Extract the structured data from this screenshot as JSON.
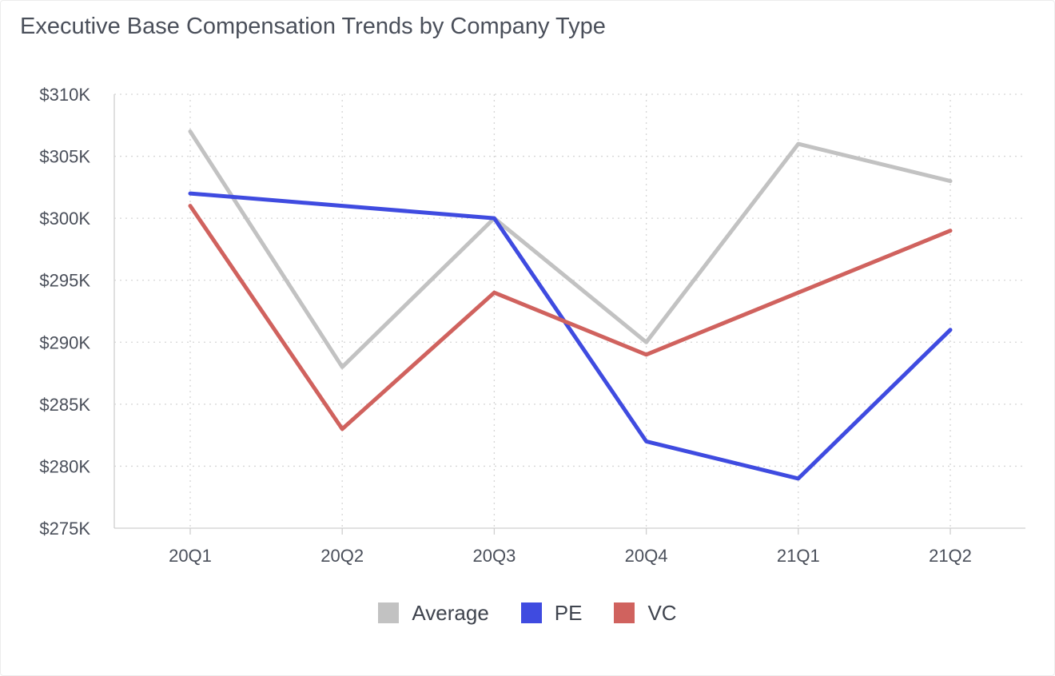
{
  "chart_data": {
    "type": "line",
    "title": "Executive Base Compensation Trends by Company Type",
    "xlabel": "",
    "ylabel": "",
    "categories": [
      "20Q1",
      "20Q2",
      "20Q3",
      "20Q4",
      "21Q1",
      "21Q2"
    ],
    "series": [
      {
        "name": "Average",
        "color": "#c2c2c2",
        "values": [
          307,
          288,
          300,
          290,
          306,
          303
        ]
      },
      {
        "name": "PE",
        "color": "#3f4be0",
        "values": [
          302,
          301,
          300,
          282,
          279,
          291
        ]
      },
      {
        "name": "VC",
        "color": "#d0625e",
        "values": [
          301,
          283,
          294,
          289,
          294,
          299
        ]
      }
    ],
    "ylim": [
      275,
      310
    ],
    "yticks": [
      275,
      280,
      285,
      290,
      295,
      300,
      305,
      310
    ],
    "ytick_labels": [
      "$275K",
      "$280K",
      "$285K",
      "$290K",
      "$295K",
      "$300K",
      "$305K",
      "$310K"
    ],
    "grid": true,
    "legend_position": "bottom-center"
  }
}
